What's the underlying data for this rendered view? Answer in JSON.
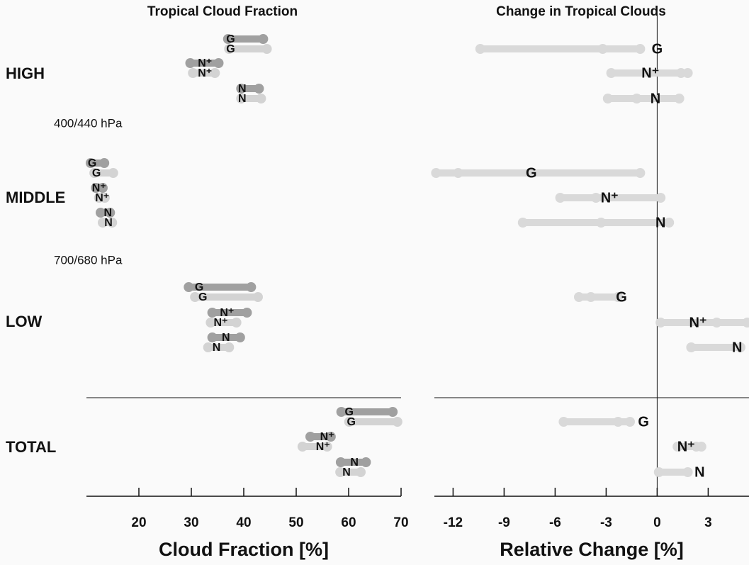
{
  "groups": [
    "HIGH",
    "MIDDLE",
    "LOW",
    "TOTAL"
  ],
  "levels": [
    "400/440 hPa",
    "700/680 hPa"
  ],
  "chart_data": [
    {
      "type": "dumbbell",
      "title": "Tropical Cloud Fraction",
      "xlabel": "Cloud Fraction [%]",
      "xlim": [
        10,
        70
      ],
      "xticks": [
        20,
        30,
        40,
        50,
        60,
        70
      ],
      "colors": [
        "#a0a0a0",
        "#d3d3d3"
      ],
      "rows": [
        {
          "label": "G",
          "ranges": [
            {
              "points": [
                37.0,
                43.7
              ],
              "marker": 37.5
            },
            {
              "points": [
                37.2,
                44.4
              ],
              "marker": 37.5
            }
          ]
        },
        {
          "label": "N⁺",
          "ranges": [
            {
              "points": [
                29.8,
                35.2
              ],
              "marker": 32.6
            },
            {
              "points": [
                30.3,
                34.5
              ],
              "marker": 32.6
            }
          ]
        },
        {
          "label": "N",
          "ranges": [
            {
              "points": [
                39.5,
                42.9
              ],
              "marker": 39.7
            },
            {
              "points": [
                39.5,
                43.3
              ],
              "marker": 39.7
            }
          ]
        },
        {
          "label": "G",
          "ranges": [
            {
              "points": [
                10.8,
                13.4
              ],
              "marker": 11.1
            },
            {
              "points": [
                11.5,
                15.1
              ],
              "marker": 11.9
            }
          ]
        },
        {
          "label": "N⁺",
          "ranges": [
            {
              "points": [
                11.8,
                13.1
              ],
              "marker": 12.4
            },
            {
              "points": [
                12.4,
                13.5
              ],
              "marker": 13.0
            }
          ]
        },
        {
          "label": "N",
          "ranges": [
            {
              "points": [
                12.7,
                14.5
              ],
              "marker": 14.1
            },
            {
              "points": [
                13.1,
                14.9
              ],
              "marker": 14.2
            }
          ]
        },
        {
          "label": "G",
          "ranges": [
            {
              "points": [
                29.5,
                41.4
              ],
              "marker": 31.5
            },
            {
              "points": [
                30.7,
                42.7
              ],
              "marker": 32.2
            }
          ]
        },
        {
          "label": "N⁺",
          "ranges": [
            {
              "points": [
                34.0,
                40.6
              ],
              "marker": 36.8
            },
            {
              "points": [
                33.7,
                38.6
              ],
              "marker": 35.6
            }
          ]
        },
        {
          "label": "N",
          "ranges": [
            {
              "points": [
                34.0,
                39.3
              ],
              "marker": 36.6
            },
            {
              "points": [
                33.2,
                37.2
              ],
              "marker": 34.8
            }
          ]
        },
        {
          "label": "G",
          "ranges": [
            {
              "points": [
                58.6,
                68.4
              ],
              "marker": 60.1
            },
            {
              "points": [
                60.1,
                69.3
              ],
              "marker": 60.5
            }
          ]
        },
        {
          "label": "N⁺",
          "ranges": [
            {
              "points": [
                52.7,
                56.6
              ],
              "marker": 55.9
            },
            {
              "points": [
                51.2,
                55.9
              ],
              "marker": 55.1
            }
          ]
        },
        {
          "label": "N",
          "ranges": [
            {
              "points": [
                58.5,
                63.3
              ],
              "marker": 61.1
            },
            {
              "points": [
                58.4,
                62.3
              ],
              "marker": 59.6
            }
          ]
        }
      ]
    },
    {
      "type": "dumbbell",
      "title": "Change in Tropical Clouds",
      "xlabel": "Relative Change [%]",
      "xlim": [
        -13.1,
        5.4
      ],
      "xticks": [
        -12,
        -9,
        -6,
        -3,
        0,
        3
      ],
      "colors": [
        "#d9d9d9"
      ],
      "zero_line": 0,
      "rows": [
        {
          "label": "G",
          "ranges": [
            {
              "points": [
                -10.4,
                -3.2,
                -1.0
              ],
              "marker": 0.0
            }
          ]
        },
        {
          "label": "N⁺",
          "ranges": [
            {
              "points": [
                -2.7,
                1.4,
                1.8
              ],
              "marker": -0.4
            }
          ]
        },
        {
          "label": "N",
          "ranges": [
            {
              "points": [
                -2.9,
                -1.2,
                1.3
              ],
              "marker": -0.1
            }
          ]
        },
        {
          "label": "G",
          "ranges": [
            {
              "points": [
                -13.0,
                -11.7,
                -1.0
              ],
              "marker": -7.4
            }
          ]
        },
        {
          "label": "N⁺",
          "ranges": [
            {
              "points": [
                -5.7,
                -3.6,
                0.2
              ],
              "marker": -2.8
            }
          ]
        },
        {
          "label": "N",
          "ranges": [
            {
              "points": [
                -7.9,
                -3.3,
                0.7
              ],
              "marker": 0.2
            }
          ]
        },
        {
          "label": "G",
          "ranges": [
            {
              "points": [
                -4.6,
                -3.9,
                -2.3
              ],
              "marker": -2.1
            }
          ]
        },
        {
          "label": "N⁺",
          "ranges": [
            {
              "points": [
                0.2,
                3.5,
                5.3
              ],
              "marker": 2.4
            }
          ]
        },
        {
          "label": "N",
          "ranges": [
            {
              "points": [
                2.0,
                4.9
              ],
              "marker": 4.7
            }
          ]
        },
        {
          "label": "G",
          "ranges": [
            {
              "points": [
                -5.5,
                -2.3,
                -1.6
              ],
              "marker": -0.8
            }
          ]
        },
        {
          "label": "N⁺",
          "ranges": [
            {
              "points": [
                1.2,
                2.3,
                2.6
              ],
              "marker": 1.7
            }
          ]
        },
        {
          "label": "N",
          "ranges": [
            {
              "points": [
                0.1,
                1.8
              ],
              "marker": 2.5
            }
          ]
        }
      ]
    }
  ]
}
